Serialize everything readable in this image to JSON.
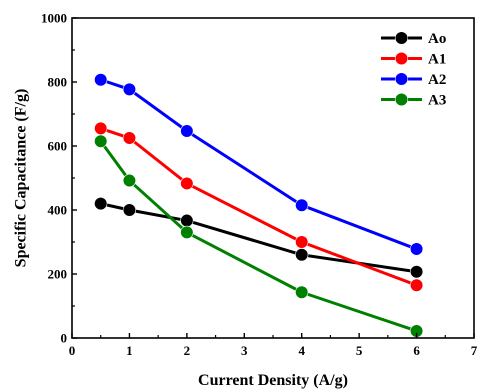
{
  "chart_data": {
    "type": "line",
    "title": "",
    "xlabel": "Current Density (A/g)",
    "ylabel": "Specific Capacitance (F/g)",
    "xlim": [
      0,
      7
    ],
    "ylim": [
      0,
      1000
    ],
    "xticks": [
      0,
      1,
      2,
      3,
      4,
      5,
      6,
      7
    ],
    "yticks": [
      0,
      200,
      400,
      600,
      800,
      1000
    ],
    "grid": false,
    "legend_position": "top-right",
    "x": [
      0.5,
      1,
      2,
      4,
      6
    ],
    "series": [
      {
        "name": "Ao",
        "color": "#000000",
        "values": [
          420,
          400,
          367,
          260,
          207
        ]
      },
      {
        "name": "A1",
        "color": "#ff0000",
        "values": [
          655,
          625,
          483,
          300,
          165
        ]
      },
      {
        "name": "A2",
        "color": "#0000ff",
        "values": [
          807,
          777,
          647,
          415,
          278
        ]
      },
      {
        "name": "A3",
        "color": "#008000",
        "values": [
          615,
          492,
          330,
          143,
          22
        ]
      }
    ]
  }
}
